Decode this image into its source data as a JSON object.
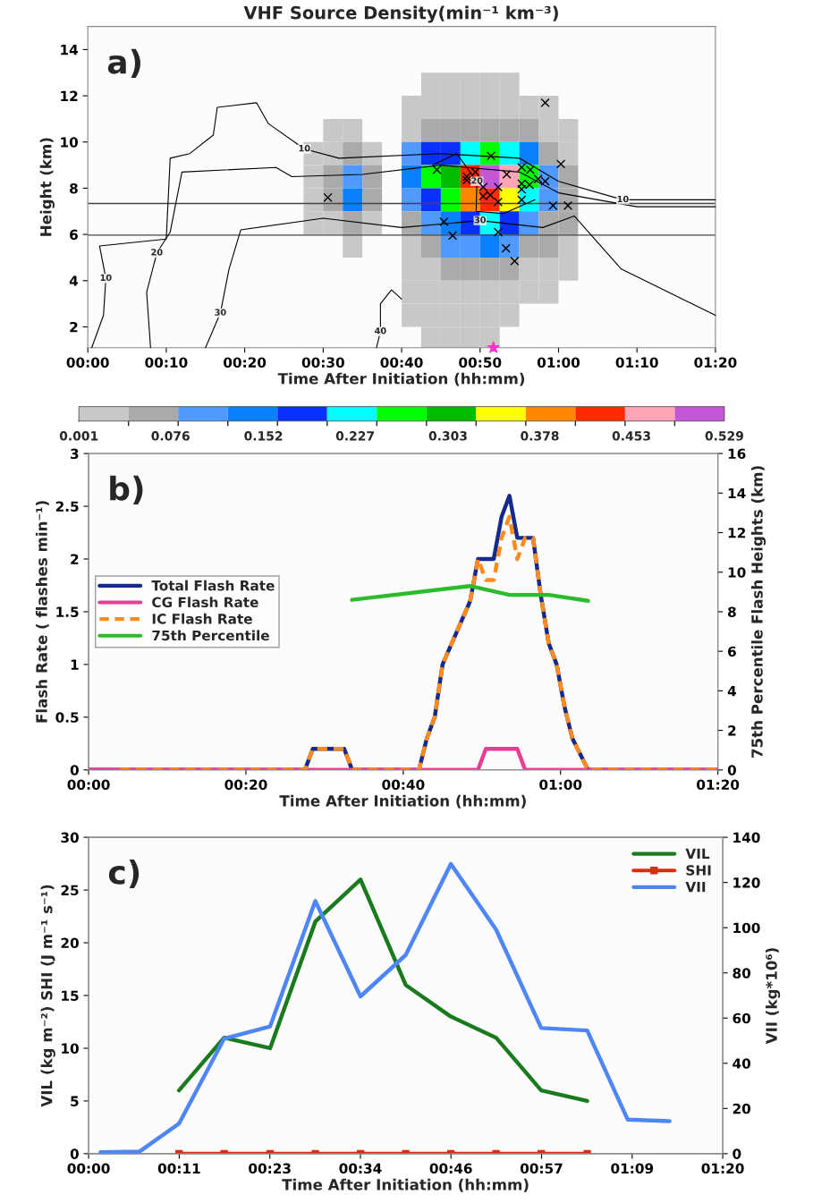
{
  "chart_data": [
    {
      "type": "heatmap",
      "title": "VHF Source Density(min⁻¹ km⁻³)",
      "xlabel": "Time After Initiation (hh:mm)",
      "ylabel": "Height (km)",
      "annotations": [
        "a)",
        {
          "text": "10",
          "x": 27.6,
          "y": 9.7
        },
        {
          "text": "10",
          "x": 68.2,
          "y": 7.5
        },
        {
          "text": "10",
          "x": 2.3,
          "y": 4.1
        },
        {
          "text": "20",
          "x": 8.8,
          "y": 5.2
        },
        {
          "text": "20",
          "x": 49.6,
          "y": 8.3
        },
        {
          "text": "30",
          "x": 16.9,
          "y": 2.6
        },
        {
          "text": "30",
          "x": 50.0,
          "y": 6.6
        },
        {
          "text": "40",
          "x": 37.3,
          "y": 1.8
        }
      ],
      "xlim": [
        0,
        80
      ],
      "ylim": [
        1.1,
        15
      ],
      "xticks": [
        {
          "value": 0,
          "label": "00:00"
        },
        {
          "value": 10,
          "label": "00:10"
        },
        {
          "value": 20,
          "label": "00:20"
        },
        {
          "value": 30,
          "label": "00:30"
        },
        {
          "value": 40,
          "label": "00:40"
        },
        {
          "value": 50,
          "label": "00:50"
        },
        {
          "value": 60,
          "label": "01:00"
        },
        {
          "value": 70,
          "label": "01:10"
        },
        {
          "value": 80,
          "label": "01:20"
        }
      ],
      "yticks": [
        2,
        4,
        6,
        8,
        10,
        12,
        14
      ],
      "clim": [
        0.001,
        0.529
      ],
      "cticks": [
        0.001,
        0.076,
        0.152,
        0.227,
        0.303,
        0.378,
        0.453,
        0.529
      ],
      "colors": [
        "#c8c8c8",
        "#aaaaaa",
        "#5099ff",
        "#0a80ff",
        "#0a30ff",
        "#00ffff",
        "#00ff00",
        "#00bb00",
        "#ffff00",
        "#ff8800",
        "#ff2a00",
        "#ffa5b8",
        "#c457d6"
      ],
      "x": [
        26.25,
        28.75,
        31.25,
        33.75,
        36.25,
        38.75,
        41.25,
        43.75,
        46.25,
        48.75,
        51.25,
        53.75,
        56.25,
        58.75,
        61.25,
        63.75,
        66.25
      ],
      "y": [
        12.5,
        11.5,
        10.5,
        9.5,
        8.5,
        7.5,
        6.5,
        5.5,
        4.5,
        3.5,
        2.5,
        1.5
      ],
      "cells": [
        [
          null,
          null,
          null,
          null,
          null,
          null,
          null,
          0.02,
          0.02,
          0.02,
          0.02,
          0.02,
          null,
          null,
          null,
          null,
          null
        ],
        [
          null,
          null,
          null,
          null,
          null,
          null,
          0.02,
          0.02,
          0.02,
          0.02,
          0.02,
          0.02,
          0.02,
          0.02,
          null,
          null,
          null
        ],
        [
          null,
          null,
          0.02,
          0.02,
          null,
          null,
          0.02,
          0.06,
          0.06,
          0.06,
          0.06,
          0.06,
          0.06,
          0.02,
          0.02,
          null,
          null
        ],
        [
          null,
          0.02,
          0.02,
          0.06,
          0.02,
          null,
          0.1,
          0.18,
          0.18,
          0.22,
          0.26,
          0.22,
          0.14,
          0.06,
          0.02,
          null,
          null
        ],
        [
          null,
          0.02,
          0.06,
          0.1,
          0.06,
          null,
          0.14,
          0.26,
          0.3,
          0.43,
          0.51,
          0.47,
          0.26,
          0.1,
          0.06,
          null,
          null
        ],
        [
          null,
          0.02,
          0.06,
          0.14,
          0.06,
          null,
          0.1,
          0.18,
          0.26,
          0.39,
          0.43,
          0.35,
          0.22,
          0.1,
          0.06,
          null,
          null
        ],
        [
          null,
          0.02,
          0.02,
          0.06,
          0.02,
          null,
          0.06,
          0.1,
          0.14,
          0.18,
          0.22,
          0.18,
          0.1,
          0.06,
          0.06,
          null,
          null
        ],
        [
          null,
          null,
          null,
          0.02,
          null,
          null,
          0.02,
          0.06,
          0.1,
          0.1,
          0.14,
          0.1,
          0.06,
          0.06,
          0.02,
          null,
          null
        ],
        [
          null,
          null,
          null,
          null,
          null,
          null,
          0.02,
          0.02,
          0.06,
          0.06,
          0.06,
          0.06,
          0.02,
          0.02,
          0.02,
          null,
          null
        ],
        [
          null,
          null,
          null,
          null,
          null,
          null,
          0.02,
          0.02,
          0.02,
          0.02,
          0.02,
          0.02,
          0.02,
          0.02,
          null,
          null,
          null
        ],
        [
          null,
          null,
          null,
          null,
          null,
          null,
          0.02,
          0.02,
          0.02,
          0.02,
          0.02,
          0.02,
          null,
          null,
          null,
          null,
          null
        ],
        [
          null,
          null,
          null,
          null,
          null,
          null,
          null,
          0.02,
          0.02,
          0.02,
          0.02,
          null,
          null,
          null,
          null,
          null,
          null
        ]
      ],
      "ref_lines": [
        {
          "axis": "y",
          "value": 7.34,
          "color": "#444444"
        },
        {
          "axis": "y",
          "value": 5.97,
          "color": "#444444"
        }
      ],
      "series": [
        {
          "type": "line",
          "color": "#000000",
          "x": [
            0.5,
            2,
            2.3,
            1.5,
            10,
            10.5,
            13,
            16,
            16.5,
            21.5,
            23,
            27.6,
            32,
            45,
            55,
            60,
            68.2,
            80
          ],
          "values": [
            1.1,
            2.5,
            4.1,
            5.5,
            5.8,
            9.3,
            9.5,
            10.3,
            11.5,
            11.7,
            10.8,
            9.7,
            9.3,
            9.5,
            9.3,
            8.3,
            7.5,
            7.5
          ]
        },
        {
          "type": "line",
          "color": "#000000",
          "x": [
            8,
            7.5,
            8.8,
            10.5,
            12,
            24,
            26,
            35,
            45,
            55,
            60,
            70,
            80
          ],
          "values": [
            1.1,
            3.5,
            5.2,
            6.1,
            8.7,
            8.9,
            8.5,
            8.6,
            9.0,
            8.7,
            7.8,
            7.2,
            7.2
          ]
        },
        {
          "type": "line",
          "color": "#000000",
          "x": [
            15,
            16.9,
            18,
            19.5,
            30,
            40,
            50,
            58,
            62,
            68,
            80
          ],
          "values": [
            1.1,
            2.6,
            4.5,
            6.2,
            6.7,
            6.3,
            6.6,
            6.3,
            6.8,
            4.5,
            2.5
          ]
        },
        {
          "type": "line",
          "color": "#000000",
          "x": [
            36.8,
            37.3,
            37.3,
            38.7,
            40
          ],
          "values": [
            1.1,
            1.8,
            3.0,
            3.6,
            3.2
          ]
        },
        {
          "type": "line",
          "color": "#000000",
          "x": [
            44,
            47,
            49.6,
            49.5,
            53,
            57
          ],
          "values": [
            9.0,
            9.5,
            8.3,
            7.0,
            6.9,
            7.5
          ]
        },
        {
          "type": "scatter",
          "color": "#000000",
          "marker": "cross",
          "x": [
            30.6,
            58.3,
            60.3,
            51.4,
            44.5,
            55.3,
            56.4,
            53.4,
            49.4,
            48.3,
            48.3,
            50.4,
            52.3,
            57.4,
            58.3,
            55.3,
            56.3,
            55.3,
            50.4,
            51.3,
            52.3,
            55.3,
            59.3,
            61.2,
            45.4,
            52.3,
            46.5,
            53.3,
            54.4
          ],
          "values": [
            7.6,
            11.7,
            9.05,
            9.4,
            8.8,
            8.9,
            8.8,
            8.6,
            8.7,
            8.5,
            8.35,
            8.05,
            8.05,
            8.4,
            8.3,
            8.2,
            8.15,
            7.95,
            7.65,
            7.7,
            7.4,
            7.5,
            7.25,
            7.25,
            6.55,
            6.1,
            5.95,
            5.4,
            4.85
          ]
        },
        {
          "type": "scatter",
          "color": "#ff33cc",
          "marker": "star",
          "x": [
            51.7
          ],
          "values": [
            1.1
          ]
        }
      ]
    },
    {
      "type": "line",
      "xlabel": "Time After Initiation (hh:mm)",
      "ylabel": "Flash Rate ( flashes min⁻¹)",
      "y2label": "75th Percentile Flash Heights (km)",
      "annotations": [
        "b)"
      ],
      "xlim": [
        0,
        80
      ],
      "ylim": [
        0,
        3
      ],
      "y2lim": [
        0,
        16
      ],
      "xticks": [
        {
          "value": 0,
          "label": "00:00"
        },
        {
          "value": 20,
          "label": "00:20"
        },
        {
          "value": 40,
          "label": "00:40"
        },
        {
          "value": 60,
          "label": "01:00"
        },
        {
          "value": 80,
          "label": "01:20"
        }
      ],
      "yticks": [
        0,
        0.5,
        1,
        1.5,
        2,
        2.5,
        3
      ],
      "y2ticks": [
        0,
        2,
        4,
        6,
        8,
        10,
        12,
        14,
        16
      ],
      "legend": "center left",
      "series": [
        {
          "name": "Total Flash Rate",
          "color": "#142a8c",
          "x": [
            0,
            27.5,
            28.5,
            32.5,
            33.5,
            42,
            43,
            44,
            45,
            48.5,
            49.5,
            51.5,
            52.5,
            53.5,
            54.5,
            56.5,
            57.5,
            58.5,
            59.5,
            60.5,
            61.5,
            63.5,
            80
          ],
          "values": [
            0,
            0,
            0.2,
            0.2,
            0,
            0,
            0.3,
            0.5,
            1.0,
            1.6,
            2.0,
            2.0,
            2.4,
            2.6,
            2.2,
            2.2,
            1.65,
            1.2,
            1.0,
            0.6,
            0.3,
            0,
            0
          ]
        },
        {
          "name": "CG Flash Rate",
          "color": "#ec3d96",
          "x": [
            0,
            49.5,
            50.5,
            54.5,
            55.5,
            80
          ],
          "values": [
            0,
            0,
            0.2,
            0.2,
            0,
            0
          ]
        },
        {
          "name": "IC Flash Rate",
          "color": "#ff8a1e",
          "line_style": "dashed",
          "x": [
            4,
            27.5,
            28.5,
            32.5,
            33.5,
            42,
            43,
            44,
            45,
            48.5,
            49.5,
            50.5,
            51.5,
            52.5,
            53.5,
            54.5,
            55.5,
            56.5,
            57.5,
            58.5,
            59.5,
            60.5,
            61.5,
            63.5,
            80
          ],
          "values": [
            0,
            0,
            0.2,
            0.2,
            0,
            0,
            0.3,
            0.5,
            1.0,
            1.6,
            2.0,
            1.8,
            1.8,
            2.2,
            2.4,
            2.0,
            2.2,
            2.2,
            1.65,
            1.2,
            1.0,
            0.6,
            0.3,
            0,
            0
          ]
        },
        {
          "name": "75th Percentile",
          "color": "#2dbb2d",
          "axis": "y2",
          "x": [
            33.5,
            48.5,
            53.5,
            58.5,
            63.5
          ],
          "values": [
            8.6,
            9.3,
            8.85,
            8.85,
            8.55
          ]
        }
      ]
    },
    {
      "type": "line",
      "xlabel": "Time After Initiation (hh:mm)",
      "ylabel": "VIL (kg m⁻²) SHI (J m⁻¹ s⁻¹)",
      "y2label": "VII (kg*10⁶)",
      "annotations": [
        "c)"
      ],
      "xlim": [
        0,
        80
      ],
      "ylim": [
        0,
        30
      ],
      "y2lim": [
        0,
        140
      ],
      "xticks": [
        {
          "value": 0,
          "label": "00:00"
        },
        {
          "value": 11.43,
          "label": "00:11"
        },
        {
          "value": 22.86,
          "label": "00:23"
        },
        {
          "value": 34.29,
          "label": "00:34"
        },
        {
          "value": 45.71,
          "label": "00:46"
        },
        {
          "value": 57.14,
          "label": "00:57"
        },
        {
          "value": 68.57,
          "label": "01:09"
        },
        {
          "value": 80,
          "label": "01:20"
        }
      ],
      "yticks": [
        0,
        5,
        10,
        15,
        20,
        25,
        30
      ],
      "y2ticks": [
        0,
        20,
        40,
        60,
        80,
        100,
        120,
        140
      ],
      "legend": "top right",
      "series": [
        {
          "name": "VIL",
          "color": "#197a1e",
          "x": [
            11.4,
            17.1,
            22.9,
            28.6,
            34.3,
            40.0,
            45.7,
            51.4,
            57.1,
            62.9
          ],
          "values": [
            6,
            11,
            10,
            22,
            26,
            16,
            13,
            11,
            6,
            5
          ]
        },
        {
          "name": "SHI",
          "color": "#e02a10",
          "marker": "square",
          "x": [
            11.4,
            17.1,
            22.9,
            28.6,
            34.3,
            40.0,
            45.7,
            51.4,
            57.1,
            62.9
          ],
          "values": [
            0,
            0,
            0,
            0,
            0,
            0,
            0,
            0,
            0,
            0
          ]
        },
        {
          "name": "VII",
          "color": "#4f86f7",
          "axis": "y2",
          "x": [
            1.5,
            6.4,
            11.4,
            17.1,
            22.9,
            28.6,
            34.3,
            40.0,
            45.7,
            51.4,
            57.1,
            62.9,
            68.0,
            73.3
          ],
          "values": [
            0.6,
            0.9,
            13.3,
            50.9,
            56.3,
            111.8,
            69.6,
            87.9,
            128.2,
            99.2,
            55.6,
            54.5,
            15.1,
            14.4
          ]
        }
      ]
    }
  ]
}
